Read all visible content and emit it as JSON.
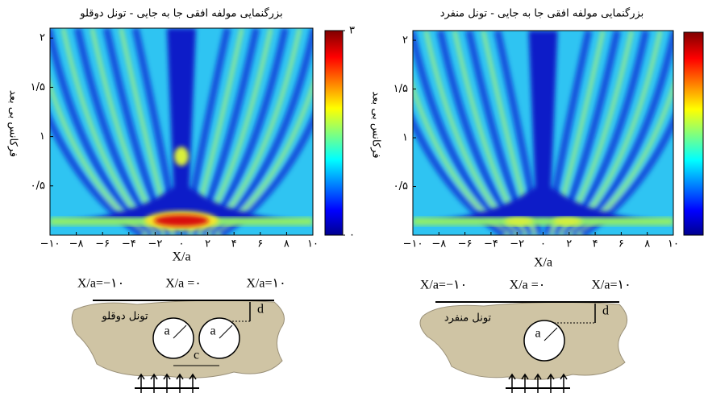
{
  "panels": [
    {
      "title": "بزرگنمایی مولفه افقی جا به جایی - تونل دوقلو",
      "xlabel": "X/a",
      "ylabel": "فرکانس بی بعد",
      "xlim": [
        -10,
        10
      ],
      "ylim": [
        0,
        2.1
      ],
      "xticks": [
        {
          "value": -10,
          "label": "−۱۰"
        },
        {
          "value": -8,
          "label": "−۸"
        },
        {
          "value": -6,
          "label": "−۶"
        },
        {
          "value": -4,
          "label": "−۴"
        },
        {
          "value": -2,
          "label": "−۲"
        },
        {
          "value": 0,
          "label": "۰"
        },
        {
          "value": 2,
          "label": "۲"
        },
        {
          "value": 4,
          "label": "۴"
        },
        {
          "value": 6,
          "label": "۶"
        },
        {
          "value": 8,
          "label": "۸"
        },
        {
          "value": 10,
          "label": "۱۰"
        }
      ],
      "yticks": [
        {
          "value": 0.5,
          "label": "۰/۵"
        },
        {
          "value": 1,
          "label": "۱"
        },
        {
          "value": 1.5,
          "label": "۱/۵"
        },
        {
          "value": 2,
          "label": "۲"
        }
      ],
      "colorbar_lim": [
        0,
        3
      ],
      "colorbar_ticks": [
        {
          "value": 0,
          "label": "۰"
        },
        {
          "value": 3,
          "label": "۳"
        }
      ],
      "diagram": {
        "surface_labels": [
          "X/a=−۱۰",
          "X/a =۰",
          "X/a=۱۰"
        ],
        "name": "تونل دوقلو",
        "radius_labels": [
          "a",
          "a"
        ],
        "spacing_label": "c",
        "depth_label": "d"
      }
    },
    {
      "title": "بزرگنمایی مولفه افقی جا به جایی - تونل منفرد",
      "xlabel": "X/a",
      "ylabel": "فرکانس بی بعد",
      "xlim": [
        -10,
        10
      ],
      "ylim": [
        0,
        2.1
      ],
      "xticks": [
        {
          "value": -10,
          "label": "−۱۰"
        },
        {
          "value": -8,
          "label": "−۸"
        },
        {
          "value": -6,
          "label": "−۶"
        },
        {
          "value": -4,
          "label": "−۴"
        },
        {
          "value": -2,
          "label": "−۲"
        },
        {
          "value": 0,
          "label": "۰"
        },
        {
          "value": 2,
          "label": "۲"
        },
        {
          "value": 4,
          "label": "۴"
        },
        {
          "value": 6,
          "label": "۶"
        },
        {
          "value": 8,
          "label": "۸"
        },
        {
          "value": 10,
          "label": "۱۰"
        }
      ],
      "yticks": [
        {
          "value": 0.5,
          "label": "۰/۵"
        },
        {
          "value": 1,
          "label": "۱"
        },
        {
          "value": 1.5,
          "label": "۱/۵"
        },
        {
          "value": 2,
          "label": "۲"
        }
      ],
      "colorbar_lim": [
        0,
        3
      ],
      "colorbar_ticks": [],
      "diagram": {
        "surface_labels": [
          "X/a=−۱۰",
          "X/a =۰",
          "X/a=۱۰"
        ],
        "name": "تونل منفرد",
        "radius_labels": [
          "a"
        ],
        "depth_label": "d"
      }
    }
  ]
}
